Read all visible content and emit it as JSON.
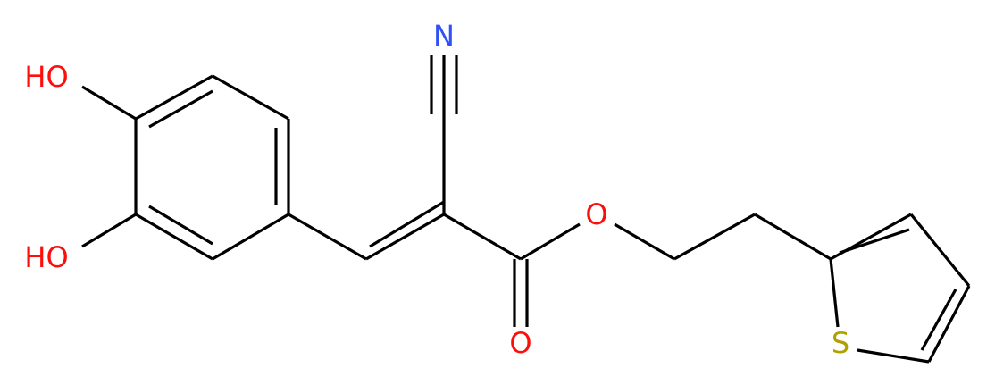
{
  "atoms": {
    "hydroxyl_top": "HO",
    "hydroxyl_bottom": "HO",
    "nitrile_n": "N",
    "ester_o": "O",
    "carbonyl_o": "O",
    "sulfur": "S"
  }
}
